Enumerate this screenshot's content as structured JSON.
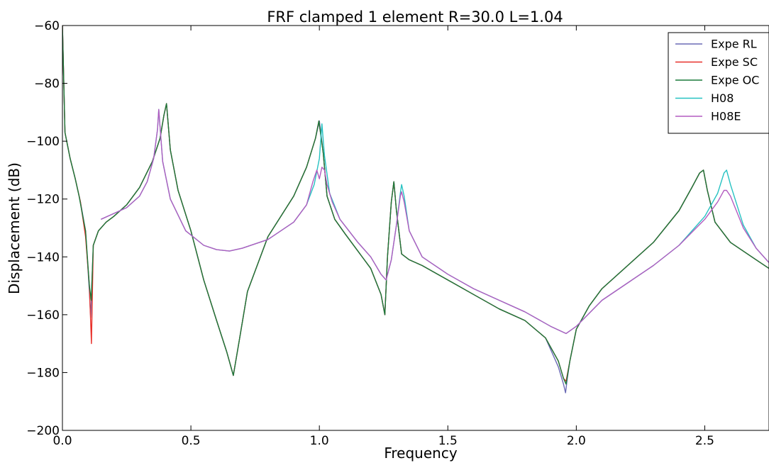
{
  "chart_data": {
    "type": "line",
    "title": "FRF clamped 1 element R=30.0 L=1.04",
    "xlabel": "Frequency",
    "ylabel": "Displacement (dB)",
    "xlim": [
      0.0,
      2.75
    ],
    "ylim": [
      -200,
      -60
    ],
    "xticks": [
      0.0,
      0.5,
      1.0,
      1.5,
      2.0,
      2.5
    ],
    "xtick_labels": [
      "0.0",
      "0.5",
      "1.0",
      "1.5",
      "2.0",
      "2.5"
    ],
    "yticks": [
      -200,
      -180,
      -160,
      -140,
      -120,
      -100,
      -80,
      -60
    ],
    "ytick_labels": [
      "−200",
      "−180",
      "−160",
      "−140",
      "−120",
      "−100",
      "−80",
      "−60"
    ],
    "grid": false,
    "legend_position": "top-right",
    "series": [
      {
        "name": "Expe RL",
        "color": "#6a6ab5",
        "x": [
          0.0,
          0.01,
          0.03,
          0.05,
          0.07,
          0.09,
          0.105,
          0.11,
          0.12,
          0.14,
          0.17,
          0.2,
          0.25,
          0.3,
          0.35,
          0.38,
          0.395,
          0.405,
          0.42,
          0.45,
          0.5,
          0.55,
          0.6,
          0.64,
          0.665,
          0.69,
          0.72,
          0.8,
          0.9,
          0.95,
          0.985,
          1.0,
          1.015,
          1.03,
          1.06,
          1.1,
          1.2,
          1.24,
          1.255,
          1.265,
          1.28,
          1.29,
          1.3,
          1.32,
          1.35,
          1.4,
          1.5,
          1.6,
          1.7,
          1.8,
          1.88,
          1.93,
          1.95,
          1.958,
          1.965,
          1.975,
          2.0,
          2.05,
          2.1,
          2.2,
          2.3,
          2.4,
          2.45,
          2.48,
          2.495,
          2.51,
          2.54,
          2.6,
          2.7,
          2.75
        ],
        "y": [
          -60,
          -97,
          -106,
          -113,
          -121,
          -131,
          -152,
          -161,
          -136,
          -131,
          -128,
          -126,
          -122,
          -116,
          -107,
          -99,
          -91,
          -87,
          -103,
          -117,
          -131,
          -148,
          -162,
          -173,
          -181,
          -168,
          -152,
          -133,
          -119,
          -109,
          -99,
          -93,
          -104,
          -119,
          -127,
          -132,
          -144,
          -153,
          -160,
          -140,
          -121,
          -114,
          -124,
          -139,
          -141,
          -143,
          -148,
          -153,
          -158,
          -162,
          -168,
          -178,
          -184,
          -187,
          -182,
          -176,
          -165,
          -157,
          -151,
          -143,
          -135,
          -124,
          -116,
          -111,
          -110,
          -117,
          -128,
          -135,
          -141,
          -144
        ]
      },
      {
        "name": "Expe SC",
        "color": "#e8302a",
        "x": [
          0.0,
          0.01,
          0.03,
          0.05,
          0.07,
          0.09,
          0.105,
          0.113,
          0.12,
          0.14,
          0.17,
          0.2,
          0.25,
          0.3,
          0.35,
          0.38,
          0.395,
          0.405,
          0.42,
          0.45,
          0.5,
          0.55,
          0.6,
          0.64,
          0.665,
          0.69,
          0.72,
          0.8,
          0.9,
          0.95,
          0.985,
          0.998,
          1.015,
          1.03,
          1.06,
          1.1,
          1.2,
          1.24,
          1.255,
          1.265,
          1.28,
          1.29,
          1.3,
          1.32,
          1.35,
          1.4,
          1.5,
          1.6,
          1.7,
          1.8,
          1.88,
          1.93,
          1.95,
          1.96,
          1.975,
          2.0,
          2.05,
          2.1,
          2.2,
          2.3,
          2.4,
          2.45,
          2.48,
          2.495,
          2.51,
          2.54,
          2.6,
          2.7,
          2.75
        ],
        "y": [
          -60,
          -97,
          -106,
          -113,
          -121,
          -133,
          -150,
          -170,
          -136,
          -131,
          -128,
          -126,
          -122,
          -116,
          -107,
          -99,
          -91,
          -87,
          -103,
          -117,
          -131,
          -148,
          -162,
          -173,
          -181,
          -168,
          -152,
          -133,
          -119,
          -109,
          -99,
          -93,
          -104,
          -119,
          -127,
          -132,
          -144,
          -153,
          -160,
          -140,
          -121,
          -114,
          -124,
          -139,
          -141,
          -143,
          -148,
          -153,
          -158,
          -162,
          -168,
          -176,
          -182,
          -183,
          -176,
          -165,
          -157,
          -151,
          -143,
          -135,
          -124,
          -116,
          -111,
          -110,
          -117,
          -128,
          -135,
          -141,
          -144
        ]
      },
      {
        "name": "Expe OC",
        "color": "#1a7a3a",
        "x": [
          0.0,
          0.01,
          0.03,
          0.05,
          0.065,
          0.075,
          0.09,
          0.105,
          0.112,
          0.12,
          0.14,
          0.17,
          0.2,
          0.25,
          0.3,
          0.35,
          0.38,
          0.395,
          0.405,
          0.42,
          0.45,
          0.5,
          0.55,
          0.6,
          0.64,
          0.665,
          0.69,
          0.72,
          0.8,
          0.9,
          0.95,
          0.985,
          0.998,
          1.015,
          1.03,
          1.06,
          1.1,
          1.2,
          1.24,
          1.255,
          1.265,
          1.28,
          1.29,
          1.3,
          1.32,
          1.35,
          1.4,
          1.5,
          1.6,
          1.7,
          1.8,
          1.88,
          1.93,
          1.95,
          1.96,
          1.975,
          2.0,
          2.05,
          2.1,
          2.2,
          2.3,
          2.4,
          2.45,
          2.48,
          2.495,
          2.51,
          2.54,
          2.6,
          2.7,
          2.75
        ],
        "y": [
          -60,
          -97,
          -106,
          -113,
          -119,
          -124,
          -131,
          -150,
          -155,
          -136,
          -131,
          -128,
          -126,
          -122,
          -116,
          -107,
          -99,
          -91,
          -87,
          -103,
          -117,
          -131,
          -148,
          -162,
          -173,
          -181,
          -168,
          -152,
          -133,
          -119,
          -109,
          -99,
          -93,
          -104,
          -119,
          -127,
          -132,
          -144,
          -153,
          -160,
          -140,
          -121,
          -114,
          -124,
          -139,
          -141,
          -143,
          -148,
          -153,
          -158,
          -162,
          -168,
          -176,
          -182,
          -184,
          -176,
          -165,
          -157,
          -151,
          -143,
          -135,
          -124,
          -116,
          -111,
          -110,
          -117,
          -128,
          -135,
          -141,
          -144
        ]
      },
      {
        "name": "H08",
        "color": "#26c2c2",
        "x": [
          0.15,
          0.2,
          0.25,
          0.3,
          0.33,
          0.355,
          0.37,
          0.375,
          0.38,
          0.39,
          0.42,
          0.48,
          0.55,
          0.6,
          0.65,
          0.7,
          0.8,
          0.9,
          0.95,
          0.98,
          1.0,
          1.01,
          1.02,
          1.04,
          1.08,
          1.15,
          1.2,
          1.24,
          1.26,
          1.28,
          1.3,
          1.315,
          1.32,
          1.33,
          1.35,
          1.4,
          1.5,
          1.6,
          1.7,
          1.8,
          1.9,
          1.96,
          2.0,
          2.1,
          2.2,
          2.3,
          2.4,
          2.5,
          2.55,
          2.575,
          2.585,
          2.6,
          2.65,
          2.7,
          2.75
        ],
        "y": [
          -127,
          -125,
          -123,
          -119,
          -114,
          -106,
          -96,
          -89,
          -95,
          -107,
          -120,
          -131,
          -136,
          -137.5,
          -138,
          -137,
          -134,
          -128,
          -122,
          -115,
          -106,
          -94,
          -105,
          -118,
          -127,
          -135,
          -140,
          -146,
          -148,
          -141,
          -129,
          -118,
          -115,
          -119,
          -131,
          -140,
          -146,
          -151,
          -155,
          -159,
          -164,
          -166.5,
          -164,
          -155,
          -149,
          -143,
          -136,
          -126,
          -118,
          -111,
          -110,
          -115,
          -129,
          -137,
          -142
        ]
      },
      {
        "name": "H08E",
        "color": "#b35cc0",
        "x": [
          0.15,
          0.2,
          0.25,
          0.3,
          0.33,
          0.355,
          0.37,
          0.375,
          0.38,
          0.39,
          0.42,
          0.48,
          0.55,
          0.6,
          0.65,
          0.7,
          0.8,
          0.9,
          0.95,
          0.975,
          0.99,
          1.0,
          1.01,
          1.02,
          1.03,
          1.05,
          1.08,
          1.15,
          1.2,
          1.24,
          1.26,
          1.28,
          1.3,
          1.315,
          1.32,
          1.33,
          1.35,
          1.4,
          1.5,
          1.6,
          1.7,
          1.8,
          1.9,
          1.96,
          2.0,
          2.1,
          2.2,
          2.3,
          2.4,
          2.5,
          2.55,
          2.575,
          2.585,
          2.6,
          2.65,
          2.7,
          2.75
        ],
        "y": [
          -127,
          -125,
          -123,
          -119,
          -114,
          -106,
          -96,
          -89,
          -95,
          -107,
          -120,
          -131,
          -136,
          -137.5,
          -138,
          -137,
          -134,
          -128,
          -122,
          -114,
          -110,
          -113,
          -109,
          -110,
          -115,
          -121,
          -127,
          -135,
          -140,
          -146,
          -148,
          -141,
          -129,
          -119,
          -117.5,
          -121,
          -131,
          -140,
          -146,
          -151,
          -155,
          -159,
          -164,
          -166.5,
          -164,
          -155,
          -149,
          -143,
          -136,
          -127,
          -121,
          -117,
          -117,
          -119,
          -130,
          -137,
          -142
        ]
      }
    ]
  }
}
